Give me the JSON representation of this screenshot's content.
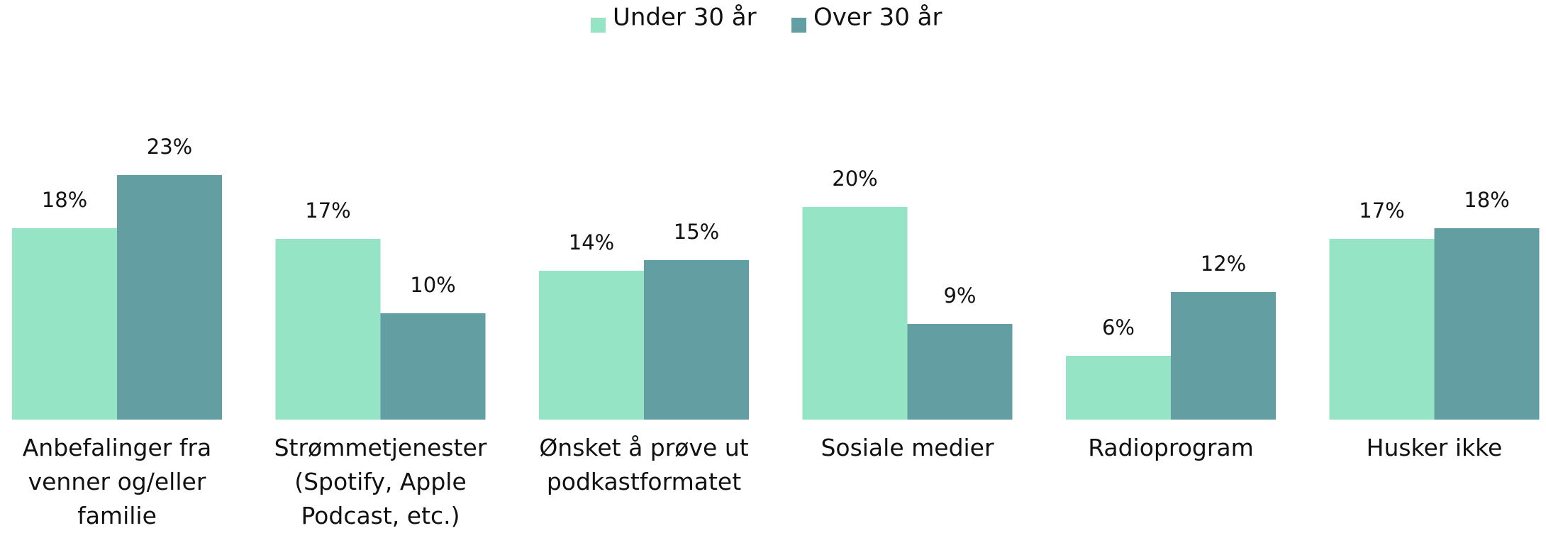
{
  "chart_data": {
    "type": "bar",
    "categories": [
      "Anbefalinger fra venner og/eller familie",
      "Strømmetjenester (Spotify, Apple Podcast, etc.)",
      "Ønsket å prøve ut podkastformatet",
      "Sosiale medier",
      "Radioprogram",
      "Husker ikke"
    ],
    "series": [
      {
        "name": "Under 30 år",
        "color": "#96e4c6",
        "values": [
          18,
          17,
          14,
          20,
          6,
          17
        ],
        "value_labels": [
          "18%",
          "17%",
          "14%",
          "20%",
          "6%",
          "17%"
        ]
      },
      {
        "name": "Over 30 år",
        "color": "#629ea2",
        "values": [
          23,
          10,
          15,
          9,
          12,
          18
        ],
        "value_labels": [
          "23%",
          "10%",
          "15%",
          "9%",
          "12%",
          "18%"
        ]
      }
    ],
    "legend": "top"
  }
}
